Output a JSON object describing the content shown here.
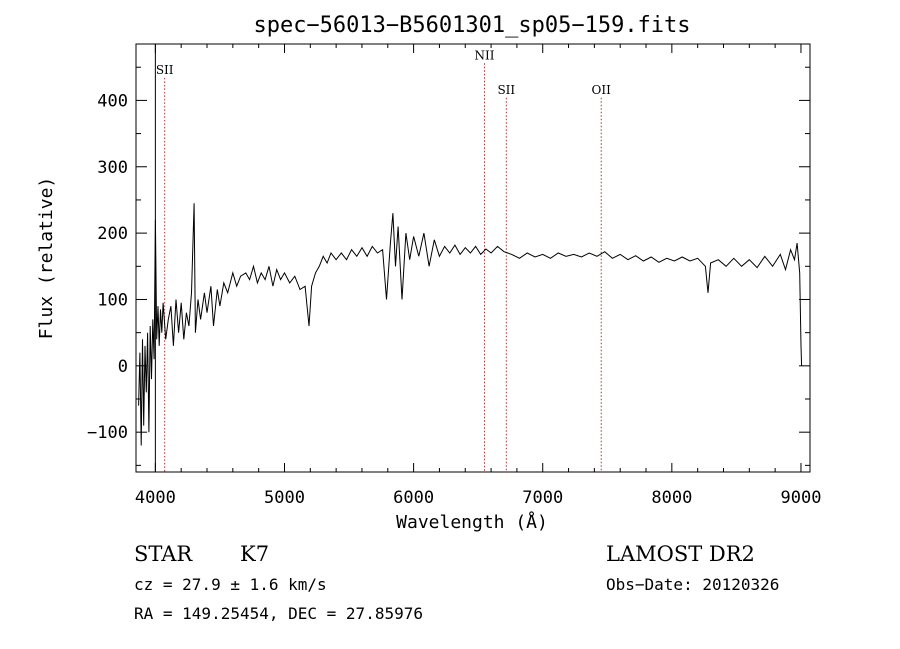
{
  "chart_data": {
    "type": "line",
    "title": "spec−56013−B5601301_sp05−159.fits",
    "xlabel": "Wavelength (Å)",
    "ylabel": "Flux (relative)",
    "xlim": [
      3850,
      9070
    ],
    "ylim": [
      -160,
      485
    ],
    "xticks": [
      {
        "value": 4000,
        "label": "4000"
      },
      {
        "value": 5000,
        "label": "5000"
      },
      {
        "value": 6000,
        "label": "6000"
      },
      {
        "value": 7000,
        "label": "7000"
      },
      {
        "value": 8000,
        "label": "8000"
      },
      {
        "value": 9000,
        "label": "9000"
      }
    ],
    "yticks": [
      {
        "value": -100,
        "label": "−100"
      },
      {
        "value": 0,
        "label": "0"
      },
      {
        "value": 100,
        "label": "100"
      },
      {
        "value": 200,
        "label": "200"
      },
      {
        "value": 300,
        "label": "300"
      },
      {
        "value": 400,
        "label": "400"
      }
    ],
    "grid": false,
    "series": [
      {
        "values": [
          [
            3870,
            -60
          ],
          [
            3880,
            20
          ],
          [
            3890,
            -120
          ],
          [
            3900,
            40
          ],
          [
            3910,
            -90
          ],
          [
            3920,
            30
          ],
          [
            3930,
            -40
          ],
          [
            3940,
            50
          ],
          [
            3950,
            -100
          ],
          [
            3960,
            60
          ],
          [
            3970,
            -20
          ],
          [
            3980,
            70
          ],
          [
            3990,
            10
          ],
          [
            4000,
            220
          ],
          [
            4010,
            40
          ],
          [
            4020,
            90
          ],
          [
            4030,
            30
          ],
          [
            4040,
            85
          ],
          [
            4050,
            50
          ],
          [
            4060,
            95
          ],
          [
            4080,
            40
          ],
          [
            4100,
            70
          ],
          [
            4120,
            90
          ],
          [
            4140,
            30
          ],
          [
            4160,
            100
          ],
          [
            4180,
            50
          ],
          [
            4200,
            95
          ],
          [
            4220,
            40
          ],
          [
            4240,
            80
          ],
          [
            4260,
            60
          ],
          [
            4280,
            110
          ],
          [
            4300,
            245
          ],
          [
            4310,
            50
          ],
          [
            4330,
            100
          ],
          [
            4350,
            70
          ],
          [
            4380,
            110
          ],
          [
            4400,
            80
          ],
          [
            4430,
            120
          ],
          [
            4450,
            60
          ],
          [
            4480,
            115
          ],
          [
            4500,
            90
          ],
          [
            4530,
            125
          ],
          [
            4560,
            110
          ],
          [
            4600,
            140
          ],
          [
            4630,
            120
          ],
          [
            4660,
            135
          ],
          [
            4700,
            140
          ],
          [
            4730,
            130
          ],
          [
            4760,
            150
          ],
          [
            4790,
            125
          ],
          [
            4820,
            140
          ],
          [
            4850,
            130
          ],
          [
            4880,
            150
          ],
          [
            4910,
            120
          ],
          [
            4940,
            145
          ],
          [
            4970,
            130
          ],
          [
            5000,
            140
          ],
          [
            5040,
            125
          ],
          [
            5080,
            135
          ],
          [
            5120,
            115
          ],
          [
            5160,
            120
          ],
          [
            5190,
            60
          ],
          [
            5210,
            120
          ],
          [
            5240,
            140
          ],
          [
            5270,
            150
          ],
          [
            5300,
            165
          ],
          [
            5330,
            155
          ],
          [
            5360,
            170
          ],
          [
            5400,
            160
          ],
          [
            5440,
            170
          ],
          [
            5480,
            160
          ],
          [
            5520,
            175
          ],
          [
            5560,
            165
          ],
          [
            5600,
            178
          ],
          [
            5640,
            165
          ],
          [
            5680,
            180
          ],
          [
            5720,
            170
          ],
          [
            5760,
            175
          ],
          [
            5790,
            100
          ],
          [
            5820,
            185
          ],
          [
            5840,
            230
          ],
          [
            5860,
            150
          ],
          [
            5880,
            210
          ],
          [
            5910,
            100
          ],
          [
            5940,
            200
          ],
          [
            5970,
            160
          ],
          [
            6000,
            195
          ],
          [
            6040,
            165
          ],
          [
            6080,
            200
          ],
          [
            6120,
            150
          ],
          [
            6160,
            190
          ],
          [
            6200,
            165
          ],
          [
            6240,
            180
          ],
          [
            6280,
            170
          ],
          [
            6320,
            182
          ],
          [
            6360,
            168
          ],
          [
            6400,
            178
          ],
          [
            6440,
            170
          ],
          [
            6480,
            180
          ],
          [
            6520,
            168
          ],
          [
            6560,
            176
          ],
          [
            6600,
            170
          ],
          [
            6650,
            180
          ],
          [
            6700,
            172
          ],
          [
            6760,
            168
          ],
          [
            6820,
            162
          ],
          [
            6880,
            170
          ],
          [
            6940,
            164
          ],
          [
            7000,
            168
          ],
          [
            7060,
            162
          ],
          [
            7120,
            170
          ],
          [
            7180,
            165
          ],
          [
            7240,
            168
          ],
          [
            7300,
            164
          ],
          [
            7360,
            170
          ],
          [
            7420,
            165
          ],
          [
            7480,
            172
          ],
          [
            7540,
            162
          ],
          [
            7600,
            168
          ],
          [
            7660,
            160
          ],
          [
            7720,
            166
          ],
          [
            7780,
            158
          ],
          [
            7840,
            164
          ],
          [
            7900,
            156
          ],
          [
            7960,
            162
          ],
          [
            8020,
            158
          ],
          [
            8080,
            164
          ],
          [
            8140,
            158
          ],
          [
            8200,
            162
          ],
          [
            8260,
            150
          ],
          [
            8280,
            110
          ],
          [
            8300,
            155
          ],
          [
            8360,
            160
          ],
          [
            8420,
            150
          ],
          [
            8480,
            162
          ],
          [
            8540,
            150
          ],
          [
            8600,
            160
          ],
          [
            8660,
            148
          ],
          [
            8720,
            165
          ],
          [
            8780,
            150
          ],
          [
            8840,
            168
          ],
          [
            8880,
            145
          ],
          [
            8920,
            175
          ],
          [
            8950,
            160
          ],
          [
            8970,
            185
          ],
          [
            8990,
            140
          ],
          [
            9000,
            30
          ],
          [
            9005,
            0
          ]
        ]
      }
    ],
    "line_markers": [
      {
        "label": "SII",
        "x": 4072,
        "label_y": 440
      },
      {
        "label": "NII",
        "x": 6549,
        "label_y": 462
      },
      {
        "label": "SII",
        "x": 6718,
        "label_y": 410
      },
      {
        "label": "OII",
        "x": 7453,
        "label_y": 410
      }
    ],
    "extra_vertical_line_x": 4000,
    "annotations": {
      "class_label": "STAR",
      "subclass_label": "K7",
      "survey_label": "LAMOST DR2",
      "cz_text": "cz = 27.9 ± 1.6 km/s",
      "obs_date_text": "Obs−Date: 20120326",
      "radec_text": "RA = 149.25454, DEC =  27.85976"
    }
  }
}
